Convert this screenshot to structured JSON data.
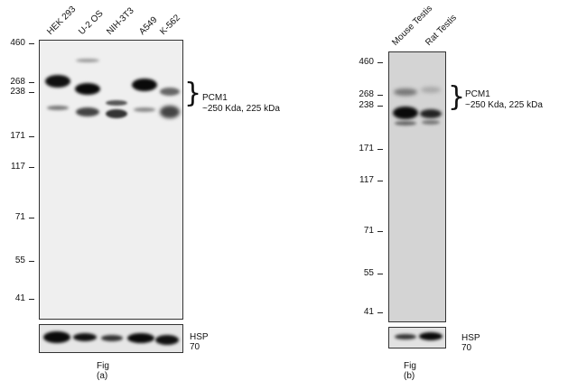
{
  "fig_a": {
    "lanes": [
      "HEK 293",
      "U-2 OS",
      "NIH-3T3",
      "A549",
      "K-562"
    ],
    "mw_markers": [
      "460",
      "268",
      "238",
      "171",
      "117",
      "71",
      "55",
      "41"
    ],
    "target_name": "PCM1",
    "target_size": "~250 Kda, 225 kDa",
    "control_label": "HSP 70",
    "caption": "Fig (a)"
  },
  "fig_b": {
    "lanes": [
      "Mouse Testis",
      "Rat Testis"
    ],
    "mw_markers": [
      "460",
      "268",
      "238",
      "171",
      "117",
      "71",
      "55",
      "41"
    ],
    "target_name": "PCM1",
    "target_size": "~250 Kda, 225 kDa",
    "control_label": "HSP 70",
    "caption": "Fig (b)"
  },
  "colors": {
    "blot_a_bg": "#efefef",
    "blot_b_bg": "#d4d4d4",
    "band_dark": "#0a0a0a"
  }
}
